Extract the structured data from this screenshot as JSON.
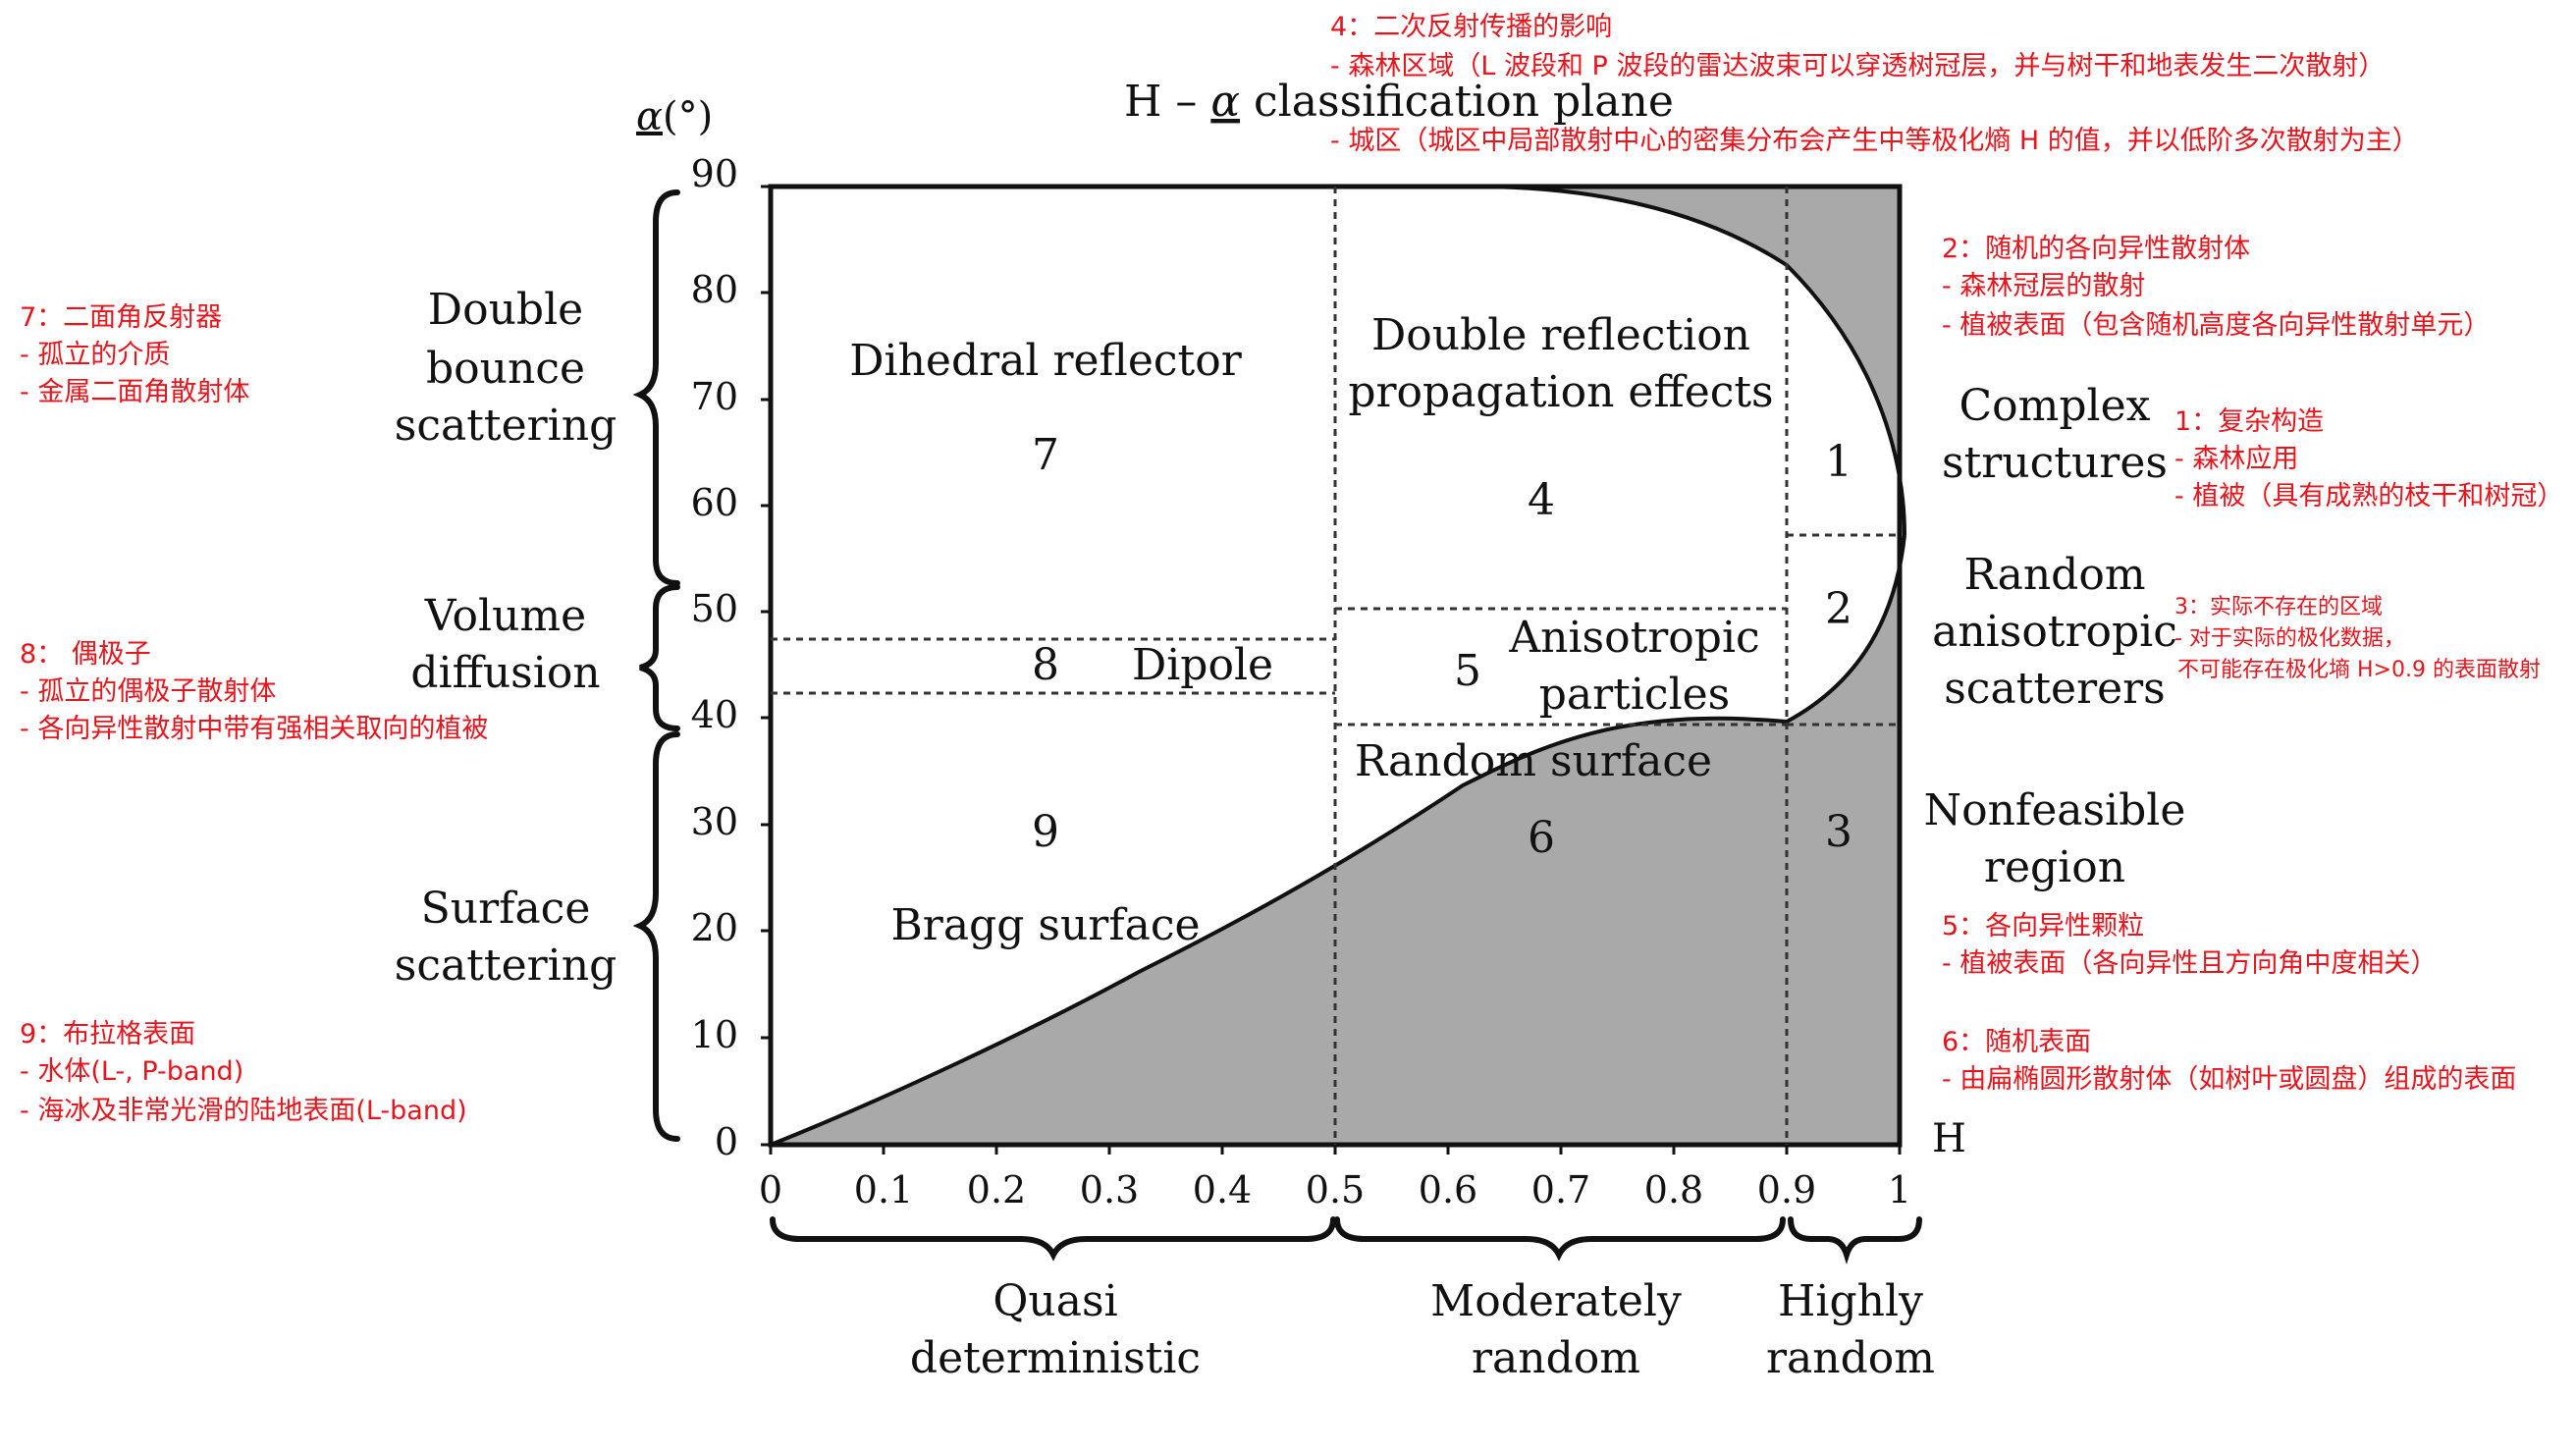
{
  "title": {
    "prefix": "H – ",
    "alpha": "α",
    "rest": " classification plane"
  },
  "y_axis": {
    "label_symbol": "α",
    "label_unit": "(°)",
    "ticks": [
      "0",
      "10",
      "20",
      "30",
      "40",
      "50",
      "60",
      "70",
      "80",
      "90"
    ]
  },
  "x_axis": {
    "label": "H",
    "ticks": [
      "0",
      "0.1",
      "0.2",
      "0.3",
      "0.4",
      "0.5",
      "0.6",
      "0.7",
      "0.8",
      "0.9",
      "1"
    ]
  },
  "left_groups": [
    {
      "line1": "Double",
      "line2": "bounce",
      "line3": "scattering"
    },
    {
      "line1": "Volume",
      "line2": "diffusion"
    },
    {
      "line1": "Surface",
      "line2": "scattering"
    }
  ],
  "bottom_groups": [
    {
      "line1": "Quasi",
      "line2": "deterministic"
    },
    {
      "line1": "Moderately",
      "line2": "random"
    },
    {
      "line1": "Highly",
      "line2": "random"
    }
  ],
  "right_labels": [
    {
      "line1": "Complex",
      "line2": "structures"
    },
    {
      "line1": "Random",
      "line2": "anisotropic",
      "line3": "scatterers"
    },
    {
      "line1": "Nonfeasible",
      "line2": "region"
    }
  ],
  "zones": {
    "z1": "1",
    "z2": "2",
    "z3": "3",
    "z4": "4",
    "z5": "5",
    "z6": "6",
    "z7": "7",
    "z8": "8",
    "z9": "9",
    "dihedral": "Dihedral reflector",
    "double_reflection_1": "Double reflection",
    "double_reflection_2": "propagation effects",
    "dipole": "Dipole",
    "aniso_1": "Anisotropic",
    "aniso_2": "particles",
    "random_surface": "Random surface",
    "bragg": "Bragg surface"
  },
  "notes": {
    "n4": [
      "4：二次反射传播的影响",
      "- 森林区域（L 波段和 P 波段的雷达波束可以穿透树冠层，并与树干和地表发生二次散射）",
      "- 城区（城区中局部散射中心的密集分布会产生中等极化熵 H 的值，并以低阶多次散射为主）"
    ],
    "n2": [
      "2：随机的各向异性散射体",
      "- 森林冠层的散射",
      "- 植被表面（包含随机高度各向异性散射单元）"
    ],
    "n1": [
      "1：复杂构造",
      "- 森林应用",
      "- 植被（具有成熟的枝干和树冠）"
    ],
    "n3": [
      "3：实际不存在的区域",
      "- 对于实际的极化数据，",
      "不可能存在极化墒 H>0.9 的表面散射"
    ],
    "n5": [
      "5：各向异性颗粒",
      "- 植被表面（各向异性且方向角中度相关）"
    ],
    "n6": [
      "6：随机表面",
      "- 由扁椭圆形散射体（如树叶或圆盘）组成的表面"
    ],
    "n7": [
      "7：二面角反射器",
      "- 孤立的介质",
      "- 金属二面角散射体"
    ],
    "n8": [
      "8： 偶极子",
      "- 孤立的偶极子散射体",
      "- 各向异性散射中带有强相关取向的植被"
    ],
    "n9": [
      "9：布拉格表面",
      "- 水体(L-, P-band)",
      "- 海冰及非常光滑的陆地表面(L-band)"
    ]
  },
  "colors": {
    "nonfeasible_fill": "#a9a9a9",
    "annotation_text": "#e8141c",
    "line": "#111111"
  }
}
